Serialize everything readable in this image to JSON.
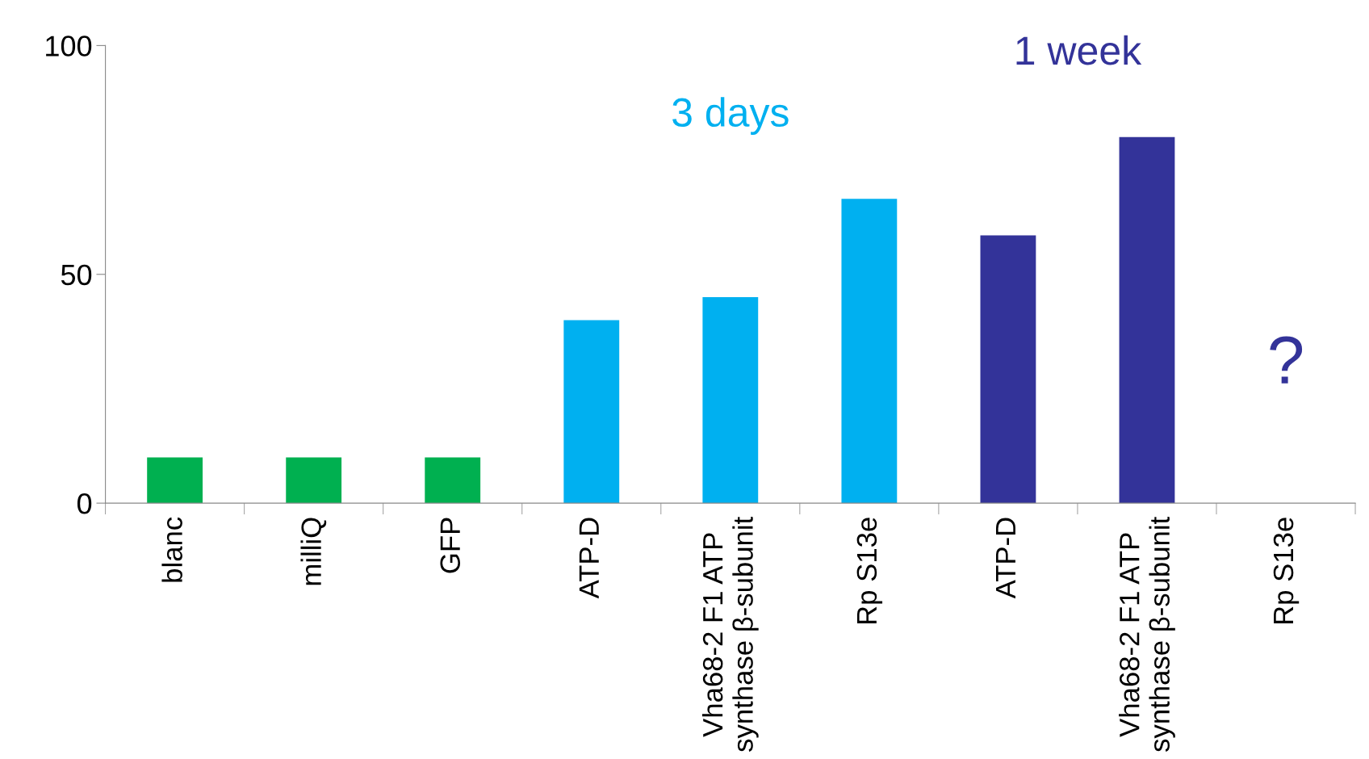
{
  "chart_data": {
    "type": "bar",
    "categories": [
      "blanc",
      "milliQ",
      "GFP",
      "ATP-D",
      "Vha68-2 F1 ATP\nsynthase β-subunit",
      "Rp S13e",
      "ATP-D",
      "Vha68-2 F1 ATP\nsynthase β-subunit",
      "Rp S13e"
    ],
    "series": [
      {
        "color": "#00b050",
        "values": [
          10,
          10,
          10,
          null,
          null,
          null,
          null,
          null,
          null
        ]
      },
      {
        "name": "3 days",
        "color": "#00b0f0",
        "values": [
          null,
          null,
          null,
          40,
          45,
          66.5,
          null,
          null,
          null
        ]
      },
      {
        "name": "1 week",
        "color": "#333399",
        "values": [
          null,
          null,
          null,
          null,
          null,
          null,
          58.5,
          80,
          null
        ]
      }
    ],
    "annotations": [
      "?"
    ],
    "ylim": [
      0,
      100
    ],
    "yticks": [
      0,
      50,
      100
    ],
    "grid": false,
    "legend": false
  }
}
